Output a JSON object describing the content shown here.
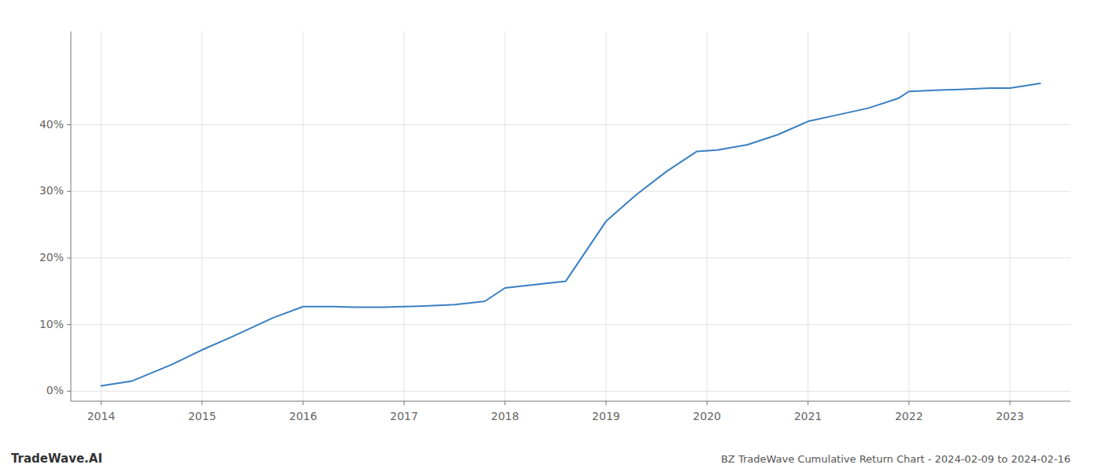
{
  "chart_data": {
    "type": "line",
    "title": "BZ TradeWave Cumulative Return Chart - 2024-02-09 to 2024-02-16",
    "annotations": [
      "TradeWave.AI"
    ],
    "color": "#3a7fc1",
    "grid": true,
    "x": [
      2014.0,
      2014.3,
      2014.7,
      2015.0,
      2015.3,
      2015.7,
      2016.0,
      2016.3,
      2016.5,
      2016.8,
      2017.0,
      2017.2,
      2017.5,
      2017.8,
      2018.0,
      2018.3,
      2018.6,
      2019.0,
      2019.3,
      2019.6,
      2019.9,
      2020.1,
      2020.4,
      2020.7,
      2021.0,
      2021.3,
      2021.6,
      2021.9,
      2022.0,
      2022.3,
      2022.5,
      2022.8,
      2023.0,
      2023.3
    ],
    "values": [
      0.008,
      0.015,
      0.04,
      0.062,
      0.082,
      0.11,
      0.127,
      0.127,
      0.126,
      0.126,
      0.127,
      0.128,
      0.13,
      0.135,
      0.155,
      0.16,
      0.165,
      0.255,
      0.295,
      0.33,
      0.36,
      0.362,
      0.37,
      0.385,
      0.405,
      0.415,
      0.425,
      0.44,
      0.45,
      0.452,
      0.453,
      0.455,
      0.455,
      0.462
    ],
    "xlim": [
      2013.7,
      2023.6
    ],
    "ylim": [
      -0.015,
      0.54
    ],
    "xticks": [
      2014,
      2015,
      2016,
      2017,
      2018,
      2019,
      2020,
      2021,
      2022,
      2023
    ],
    "yticks": [
      {
        "value": 0.0,
        "label": "0%"
      },
      {
        "value": 0.1,
        "label": "10%"
      },
      {
        "value": 0.2,
        "label": "20%"
      },
      {
        "value": 0.3,
        "label": "30%"
      },
      {
        "value": 0.4,
        "label": "40%"
      }
    ]
  }
}
